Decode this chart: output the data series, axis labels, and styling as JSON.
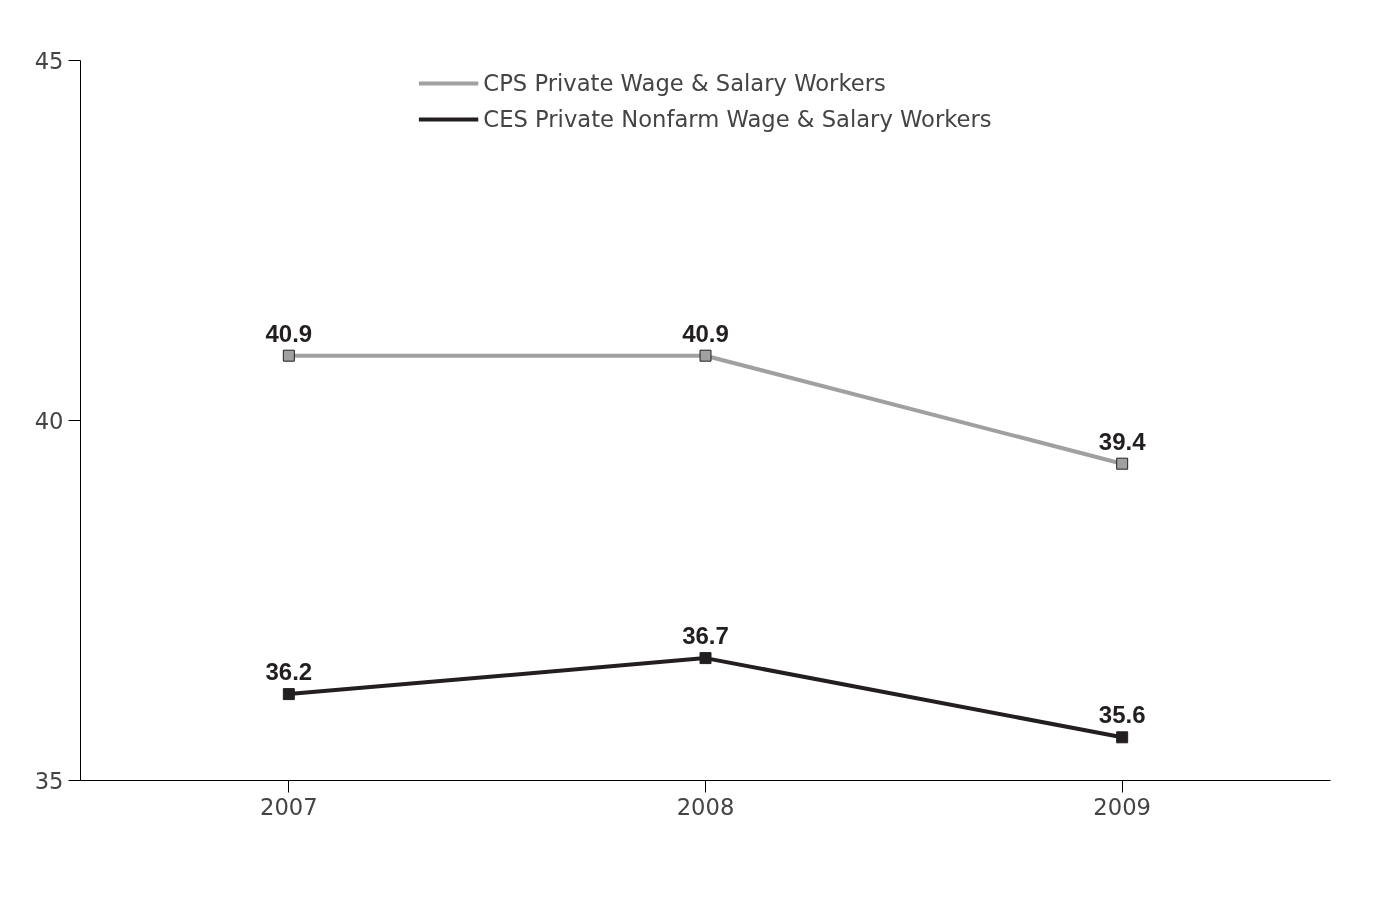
{
  "chart_data": {
    "type": "line",
    "categories": [
      "2007",
      "2008",
      "2009"
    ],
    "series": [
      {
        "name": "CPS Private Wage & Salary Workers",
        "color": "#a0a0a0",
        "values": [
          40.9,
          40.9,
          39.4
        ]
      },
      {
        "name": "CES Private Nonfarm Wage & Salary Workers",
        "color": "#231f20",
        "values": [
          36.2,
          36.7,
          35.6
        ]
      }
    ],
    "ylim": [
      35,
      45
    ],
    "yticks": [
      35,
      40,
      45
    ],
    "data_labels": true,
    "legend": "top",
    "marker": "square",
    "line_style": "solid",
    "grid": false
  }
}
